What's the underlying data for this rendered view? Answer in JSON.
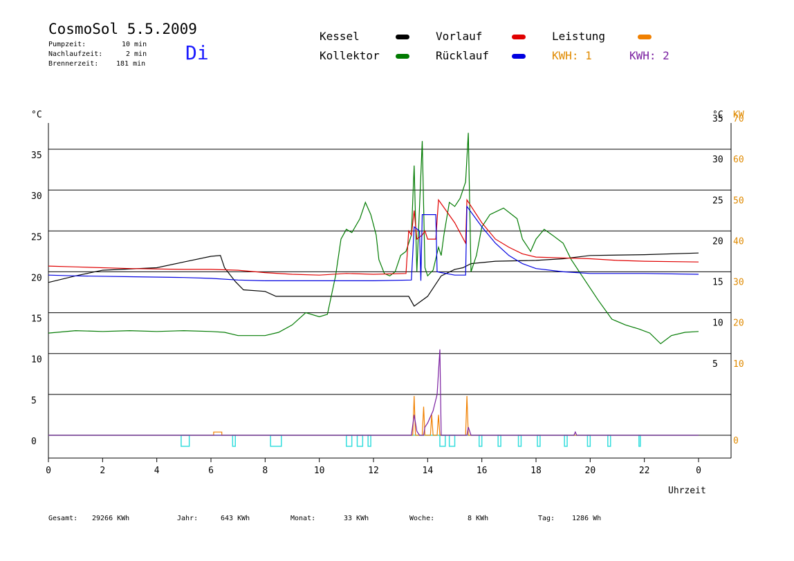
{
  "header": {
    "title": "CosmoSol 5.5.2009",
    "pumpzeit_label": "Pumpzeit:",
    "pumpzeit_value": "10 min",
    "nachlaufzeit_label": "Nachlaufzeit:",
    "nachlaufzeit_value": "2 min",
    "brennerzeit_label": "Brennerzeit:",
    "brennerzeit_value": "181 min",
    "day": "Di"
  },
  "legend": {
    "kessel": "Kessel",
    "kollektor": "Kollektor",
    "vorlauf": "Vorlauf",
    "ruecklauf": "Rücklauf",
    "leistung": "Leistung",
    "kwh1": "KWH: 1",
    "kwh2": "KWH: 2"
  },
  "colors": {
    "kessel": "#000000",
    "kollektor": "#007a00",
    "vorlauf": "#e00000",
    "ruecklauf": "#0000e0",
    "leistung": "#f08000",
    "kwh1_text": "#e08a00",
    "kwh2": "#7a1fa0",
    "pump": "#33dddd"
  },
  "footer": {
    "gesamt_label": "Gesamt:",
    "gesamt_value": "29266 KWh",
    "jahr_label": "Jahr:",
    "jahr_value": "643 KWh",
    "monat_label": "Monat:",
    "monat_value": "33 KWh",
    "woche_label": "Woche:",
    "woche_value": "8 KWh",
    "tag_label": "Tag:",
    "tag_value": "1286 Wh"
  },
  "chart_data": {
    "type": "line",
    "xlabel": "Uhrzeit",
    "ylabel_left": "°C",
    "ylabel_right": "°C",
    "ylabel_right2": "KW",
    "x_ticks": [
      "0",
      "2",
      "4",
      "6",
      "8",
      "10",
      "12",
      "14",
      "16",
      "18",
      "20",
      "22",
      "0"
    ],
    "y_ticks_left": [
      "0",
      "5",
      "10",
      "15",
      "20",
      "25",
      "30",
      "35"
    ],
    "y_ticks_right": [
      "5",
      "10",
      "15",
      "20",
      "25",
      "30",
      "35"
    ],
    "y_ticks_kw": [
      "0",
      "10",
      "20",
      "30",
      "40",
      "50",
      "60",
      "70"
    ],
    "xlim": [
      0,
      24
    ],
    "ylim": [
      -2.5,
      38
    ],
    "grid": "horizontal",
    "legend_position": "top",
    "series": [
      {
        "name": "Kessel",
        "points": [
          [
            0,
            18.7
          ],
          [
            1,
            19.5
          ],
          [
            2,
            20.2
          ],
          [
            4,
            20.5
          ],
          [
            5,
            21.2
          ],
          [
            6,
            21.9
          ],
          [
            6.35,
            22.0
          ],
          [
            6.5,
            20.5
          ],
          [
            6.9,
            18.8
          ],
          [
            7.2,
            17.8
          ],
          [
            8,
            17.6
          ],
          [
            8.4,
            17.0
          ],
          [
            12,
            17.0
          ],
          [
            13.3,
            17.0
          ],
          [
            13.5,
            15.8
          ],
          [
            14,
            17.0
          ],
          [
            14.5,
            19.5
          ],
          [
            15,
            20.3
          ],
          [
            15.3,
            20.5
          ],
          [
            15.6,
            21.0
          ],
          [
            16.5,
            21.3
          ],
          [
            18,
            21.4
          ],
          [
            19,
            21.6
          ],
          [
            20,
            22.0
          ],
          [
            22,
            22.1
          ],
          [
            24,
            22.3
          ]
        ]
      },
      {
        "name": "Kollektor",
        "points": [
          [
            0,
            12.5
          ],
          [
            1,
            12.8
          ],
          [
            2,
            12.7
          ],
          [
            3,
            12.8
          ],
          [
            4,
            12.7
          ],
          [
            5,
            12.8
          ],
          [
            6,
            12.7
          ],
          [
            6.5,
            12.6
          ],
          [
            7,
            12.2
          ],
          [
            8,
            12.2
          ],
          [
            8.5,
            12.6
          ],
          [
            9,
            13.5
          ],
          [
            9.5,
            15.0
          ],
          [
            10,
            14.5
          ],
          [
            10.3,
            14.8
          ],
          [
            10.6,
            19.5
          ],
          [
            10.8,
            24.0
          ],
          [
            11.0,
            25.2
          ],
          [
            11.2,
            24.8
          ],
          [
            11.5,
            26.5
          ],
          [
            11.7,
            28.5
          ],
          [
            11.9,
            27.0
          ],
          [
            12.1,
            24.5
          ],
          [
            12.2,
            21.5
          ],
          [
            12.4,
            19.8
          ],
          [
            12.6,
            19.5
          ],
          [
            12.8,
            20.0
          ],
          [
            13.0,
            22.0
          ],
          [
            13.2,
            22.5
          ],
          [
            13.4,
            24.5
          ],
          [
            13.5,
            33.0
          ],
          [
            13.6,
            20.0
          ],
          [
            13.8,
            36.0
          ],
          [
            13.9,
            20.5
          ],
          [
            14.0,
            19.5
          ],
          [
            14.2,
            20.2
          ],
          [
            14.4,
            23.0
          ],
          [
            14.5,
            22.0
          ],
          [
            14.6,
            24.5
          ],
          [
            14.8,
            28.5
          ],
          [
            15.0,
            28.0
          ],
          [
            15.2,
            29.0
          ],
          [
            15.4,
            31.0
          ],
          [
            15.5,
            37.0
          ],
          [
            15.6,
            20.0
          ],
          [
            15.8,
            22.0
          ],
          [
            16.0,
            25.5
          ],
          [
            16.3,
            27.0
          ],
          [
            16.8,
            27.8
          ],
          [
            17.3,
            26.5
          ],
          [
            17.5,
            24.0
          ],
          [
            17.8,
            22.5
          ],
          [
            18.0,
            24.0
          ],
          [
            18.3,
            25.2
          ],
          [
            18.6,
            24.5
          ],
          [
            19.0,
            23.5
          ],
          [
            19.3,
            21.5
          ],
          [
            19.8,
            19.0
          ],
          [
            20.3,
            16.5
          ],
          [
            20.8,
            14.2
          ],
          [
            21.3,
            13.5
          ],
          [
            21.8,
            13.0
          ],
          [
            22.2,
            12.5
          ],
          [
            22.6,
            11.2
          ],
          [
            23.0,
            12.2
          ],
          [
            23.5,
            12.6
          ],
          [
            24,
            12.7
          ]
        ]
      },
      {
        "name": "Vorlauf",
        "points": [
          [
            0,
            20.7
          ],
          [
            1,
            20.6
          ],
          [
            3,
            20.4
          ],
          [
            5,
            20.3
          ],
          [
            6,
            20.3
          ],
          [
            7,
            20.2
          ],
          [
            8,
            19.9
          ],
          [
            9,
            19.7
          ],
          [
            10,
            19.6
          ],
          [
            11,
            19.8
          ],
          [
            12,
            19.7
          ],
          [
            13.2,
            19.8
          ],
          [
            13.3,
            25.0
          ],
          [
            13.4,
            24.5
          ],
          [
            13.5,
            27.5
          ],
          [
            13.6,
            24.0
          ],
          [
            13.8,
            24.5
          ],
          [
            13.9,
            25.0
          ],
          [
            14.0,
            24.0
          ],
          [
            14.3,
            24.0
          ],
          [
            14.4,
            28.8
          ],
          [
            15.0,
            26.0
          ],
          [
            15.4,
            23.5
          ],
          [
            15.45,
            28.8
          ],
          [
            16.0,
            26.0
          ],
          [
            16.5,
            24.0
          ],
          [
            17.0,
            23.0
          ],
          [
            17.5,
            22.2
          ],
          [
            18,
            21.8
          ],
          [
            19,
            21.7
          ],
          [
            20,
            21.6
          ],
          [
            21,
            21.4
          ],
          [
            22,
            21.3
          ],
          [
            24,
            21.2
          ]
        ]
      },
      {
        "name": "Rücklauf",
        "points": [
          [
            0,
            19.6
          ],
          [
            1,
            19.5
          ],
          [
            3,
            19.4
          ],
          [
            5,
            19.3
          ],
          [
            6,
            19.2
          ],
          [
            7,
            19.0
          ],
          [
            8,
            18.9
          ],
          [
            10,
            18.9
          ],
          [
            12,
            18.9
          ],
          [
            13.4,
            19.0
          ],
          [
            13.5,
            25.5
          ],
          [
            13.7,
            25.0
          ],
          [
            13.75,
            18.9
          ],
          [
            13.8,
            27.0
          ],
          [
            14.3,
            27.0
          ],
          [
            14.35,
            20.0
          ],
          [
            15.0,
            19.6
          ],
          [
            15.4,
            19.6
          ],
          [
            15.45,
            28.0
          ],
          [
            16.0,
            25.5
          ],
          [
            16.5,
            23.5
          ],
          [
            17.0,
            22.0
          ],
          [
            17.5,
            21.0
          ],
          [
            18,
            20.4
          ],
          [
            19,
            20.0
          ],
          [
            20,
            19.8
          ],
          [
            22,
            19.8
          ],
          [
            24,
            19.7
          ]
        ]
      },
      {
        "name": "Leistung",
        "points": [
          [
            0,
            0
          ],
          [
            6.1,
            0
          ],
          [
            6.1,
            0.4
          ],
          [
            6.4,
            0.4
          ],
          [
            6.4,
            0
          ],
          [
            13.45,
            0
          ],
          [
            13.5,
            4.8
          ],
          [
            13.55,
            0
          ],
          [
            13.8,
            0
          ],
          [
            13.85,
            3.5
          ],
          [
            13.9,
            0
          ],
          [
            14.1,
            0
          ],
          [
            14.15,
            2.5
          ],
          [
            14.2,
            0
          ],
          [
            14.35,
            0
          ],
          [
            14.4,
            2.5
          ],
          [
            14.45,
            0
          ],
          [
            15.4,
            0
          ],
          [
            15.45,
            4.8
          ],
          [
            15.5,
            0
          ],
          [
            24,
            0
          ]
        ]
      },
      {
        "name": "KWH: 2",
        "points": [
          [
            0,
            0
          ],
          [
            13.4,
            0
          ],
          [
            13.5,
            2.5
          ],
          [
            13.6,
            0.5
          ],
          [
            13.7,
            0
          ],
          [
            13.85,
            0
          ],
          [
            13.9,
            1.0
          ],
          [
            14.0,
            1.5
          ],
          [
            14.2,
            3.0
          ],
          [
            14.35,
            5.0
          ],
          [
            14.45,
            10.5
          ],
          [
            14.5,
            0
          ],
          [
            15.45,
            0
          ],
          [
            15.5,
            1.0
          ],
          [
            15.6,
            0
          ],
          [
            19.4,
            0
          ],
          [
            19.45,
            0.4
          ],
          [
            19.5,
            0
          ],
          [
            24,
            0
          ]
        ]
      }
    ],
    "pump_pulses": [
      [
        4.9,
        5.2
      ],
      [
        6.8,
        6.9
      ],
      [
        8.2,
        8.6
      ],
      [
        11.0,
        11.2
      ],
      [
        11.4,
        11.6
      ],
      [
        11.8,
        11.9
      ],
      [
        14.45,
        14.65
      ],
      [
        14.8,
        15.0
      ],
      [
        15.9,
        16.0
      ],
      [
        16.6,
        16.7
      ],
      [
        17.35,
        17.45
      ],
      [
        18.05,
        18.15
      ],
      [
        19.05,
        19.15
      ],
      [
        19.9,
        20.0
      ],
      [
        20.65,
        20.75
      ],
      [
        21.8,
        21.85
      ]
    ]
  }
}
